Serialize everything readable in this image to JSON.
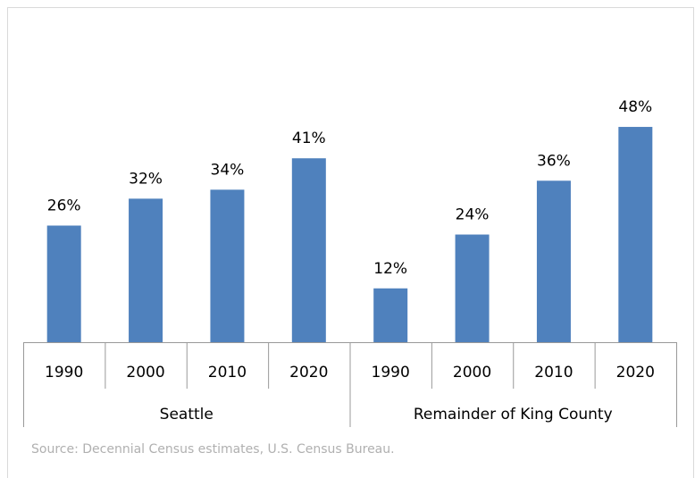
{
  "chart_data": {
    "type": "bar",
    "groups": [
      {
        "name": "Seattle",
        "categories": [
          "1990",
          "2000",
          "2010",
          "2020"
        ],
        "values": [
          26,
          32,
          34,
          41
        ],
        "value_labels": [
          "26%",
          "32%",
          "34%",
          "41%"
        ]
      },
      {
        "name": "Remainder of King County",
        "categories": [
          "1990",
          "2000",
          "2010",
          "2020"
        ],
        "values": [
          12,
          24,
          36,
          48
        ],
        "value_labels": [
          "12%",
          "24%",
          "36%",
          "48%"
        ]
      }
    ],
    "color": "#4f81bd",
    "ylim": [
      0,
      70
    ],
    "source": "Source: Decennial Census estimates, U.S. Census Bureau."
  }
}
